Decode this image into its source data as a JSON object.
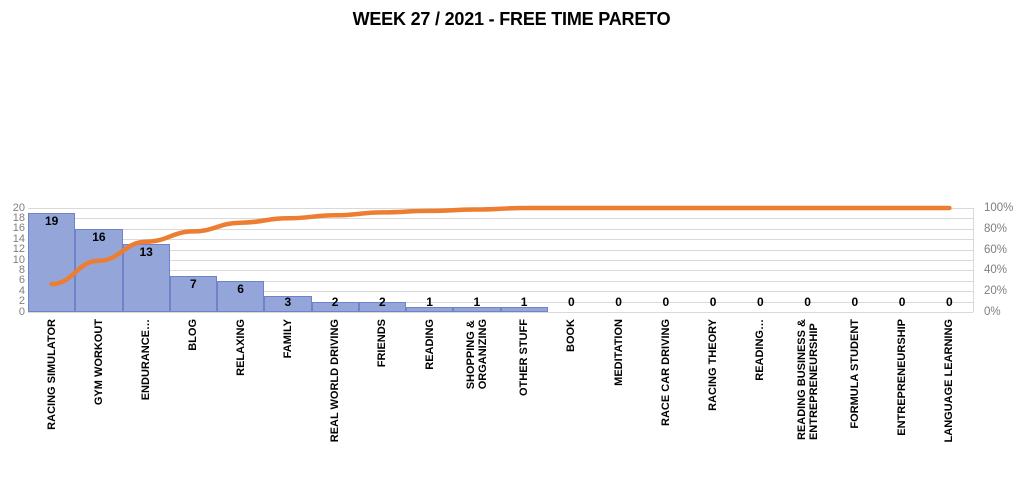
{
  "chart_data": {
    "type": "bar",
    "subtype": "pareto",
    "title": "WEEK 27 / 2021 - FREE TIME PARETO",
    "categories": [
      "RACING SIMULATOR",
      "GYM WORKOUT",
      "ENDURANCE…",
      "BLOG",
      "RELAXING",
      "FAMILY",
      "REAL WORLD DRIVING",
      "FRIENDS",
      "READING",
      "SHOPPING &\nORGANIZING",
      "OTHER STUFF",
      "BOOK",
      "MEDITATION",
      "RACE CAR DRIVING",
      "RACING THEORY",
      "READING…",
      "READING BUSINESS &\nENTREPRENEURSHIP",
      "FORMULA STUDENT",
      "ENTREPRENEURSHIP",
      "LANGUAGE LEARNING"
    ],
    "series": [
      {
        "name": "hours-bars",
        "type": "bar",
        "values": [
          19,
          16,
          13,
          7,
          6,
          3,
          2,
          2,
          1,
          1,
          1,
          0,
          0,
          0,
          0,
          0,
          0,
          0,
          0,
          0
        ],
        "data_labels": [
          "19",
          "16",
          "13",
          "7",
          "6",
          "3",
          "2",
          "2",
          "1",
          "1",
          "1",
          "0",
          "0",
          "0",
          "0",
          "0",
          "0",
          "0",
          "0",
          "0"
        ]
      },
      {
        "name": "cumulative-percent-line",
        "type": "line",
        "values": [
          26.8,
          49.3,
          67.6,
          77.5,
          85.9,
          90.1,
          93.0,
          95.8,
          97.2,
          98.6,
          100,
          100,
          100,
          100,
          100,
          100,
          100,
          100,
          100,
          100
        ]
      }
    ],
    "left_axis": {
      "min": 0,
      "max": 20,
      "step": 2,
      "ticks": [
        "20",
        "18",
        "16",
        "14",
        "12",
        "10",
        "8",
        "6",
        "4",
        "2",
        "0"
      ]
    },
    "right_axis": {
      "min": 0,
      "max": 100,
      "ticks": [
        "100%",
        "80%",
        "60%",
        "40%",
        "20%",
        "0%"
      ]
    },
    "grid": true,
    "legend": "none"
  },
  "colors": {
    "bar_fill": "#94a5d9",
    "bar_border": "#6f83c9",
    "line": "#ed7d31",
    "grid": "#d9d9d9",
    "axis_text": "#7f7f7f",
    "label_text": "#000000"
  }
}
